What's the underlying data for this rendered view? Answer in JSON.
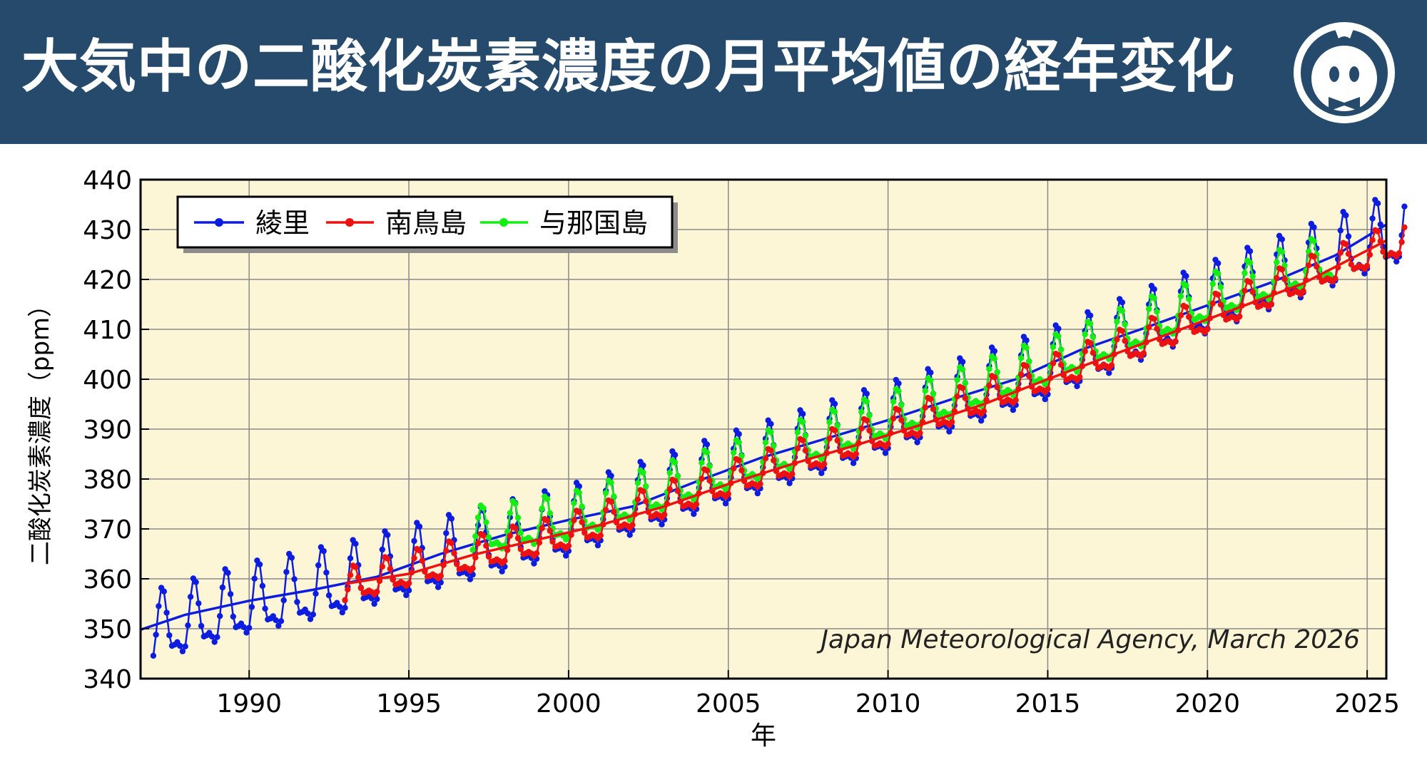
{
  "header": {
    "title": "大気中の二酸化炭素濃度の月平均値の経年変化"
  },
  "logo": {
    "icon": "mascot-face-icon"
  },
  "colors": {
    "header_bg": "#254a6b",
    "plot_bg": "#fcf5d6",
    "ryori": "#0d1de0",
    "minamitorishima": "#ee1111",
    "yonagunijima": "#14ee14"
  },
  "chart_data": {
    "type": "line",
    "xlabel": "年",
    "ylabel": "二酸化炭素濃度（ppm）",
    "xlim": [
      1986.6,
      2025.6
    ],
    "ylim": [
      340,
      440
    ],
    "x_ticks": [
      1990,
      1995,
      2000,
      2005,
      2010,
      2015,
      2020,
      2025
    ],
    "y_ticks": [
      340,
      350,
      360,
      370,
      380,
      390,
      400,
      410,
      420,
      430,
      440
    ],
    "grid": true,
    "legend_position": "top-left",
    "annotation": "Japan Meteorological Agency, March 2026",
    "series": [
      {
        "name": "綾里",
        "color": "#0d1de0",
        "start": 1987.0,
        "end": 2026.2,
        "seasonal_amplitude_ppm": 8.5,
        "annual_peak_month": "April",
        "annual_min_month": "August",
        "annual_means": [
          [
            1987,
            349.0
          ],
          [
            1990,
            354.6
          ],
          [
            1993,
            358.6
          ],
          [
            1995,
            362.1
          ],
          [
            2000,
            370.0
          ],
          [
            2005,
            380.5
          ],
          [
            2010,
            390.6
          ],
          [
            2015,
            401.4
          ],
          [
            2020,
            414.6
          ],
          [
            2025,
            426.6
          ]
        ],
        "trend_curve": [
          [
            1986.6,
            349.8
          ],
          [
            1988,
            352.8
          ],
          [
            1990,
            355.6
          ],
          [
            1992,
            357.8
          ],
          [
            1994,
            360.4
          ],
          [
            1996,
            365.0
          ],
          [
            1998,
            368.8
          ],
          [
            2000,
            371.8
          ],
          [
            2002,
            374.5
          ],
          [
            2004,
            379.5
          ],
          [
            2006,
            384.2
          ],
          [
            2008,
            388.0
          ],
          [
            2010,
            391.8
          ],
          [
            2012,
            396.0
          ],
          [
            2014,
            400.0
          ],
          [
            2016,
            405.8
          ],
          [
            2018,
            410.2
          ],
          [
            2020,
            414.8
          ],
          [
            2022,
            419.4
          ],
          [
            2024,
            424.8
          ],
          [
            2025.6,
            431.0
          ]
        ]
      },
      {
        "name": "南鳥島",
        "color": "#ee1111",
        "start": 1993.0,
        "end": 2026.2,
        "seasonal_amplitude_ppm": 4.2,
        "annual_peak_month": "April",
        "annual_min_month": "August",
        "annual_means": [
          [
            1994,
            359.6
          ],
          [
            1995,
            361.3
          ],
          [
            2000,
            368.8
          ],
          [
            2005,
            379.2
          ],
          [
            2010,
            389.2
          ],
          [
            2015,
            400.2
          ],
          [
            2020,
            412.2
          ],
          [
            2025,
            424.9
          ]
        ],
        "trend_curve": [
          [
            1993.0,
            359.0
          ],
          [
            1995,
            361.0
          ],
          [
            1997,
            364.8
          ],
          [
            1999,
            367.8
          ],
          [
            2001,
            370.8
          ],
          [
            2003,
            374.5
          ],
          [
            2005,
            379.0
          ],
          [
            2007,
            383.0
          ],
          [
            2009,
            386.8
          ],
          [
            2011,
            390.8
          ],
          [
            2013,
            395.0
          ],
          [
            2015,
            400.0
          ],
          [
            2017,
            404.8
          ],
          [
            2019,
            409.6
          ],
          [
            2021,
            414.4
          ],
          [
            2023,
            419.2
          ],
          [
            2025.6,
            427.8
          ]
        ]
      },
      {
        "name": "与那国島",
        "color": "#14ee14",
        "start": 1997.0,
        "end": 2023.95,
        "seasonal_amplitude_ppm": 5.6,
        "annual_peak_month": "April",
        "annual_min_month": "August",
        "annual_means": [
          [
            1998,
            369.6
          ],
          [
            2000,
            371.4
          ],
          [
            2005,
            381.5
          ],
          [
            2010,
            391.7
          ],
          [
            2015,
            402.6
          ],
          [
            2020,
            415.3
          ],
          [
            2023,
            421.8
          ]
        ]
      }
    ]
  }
}
